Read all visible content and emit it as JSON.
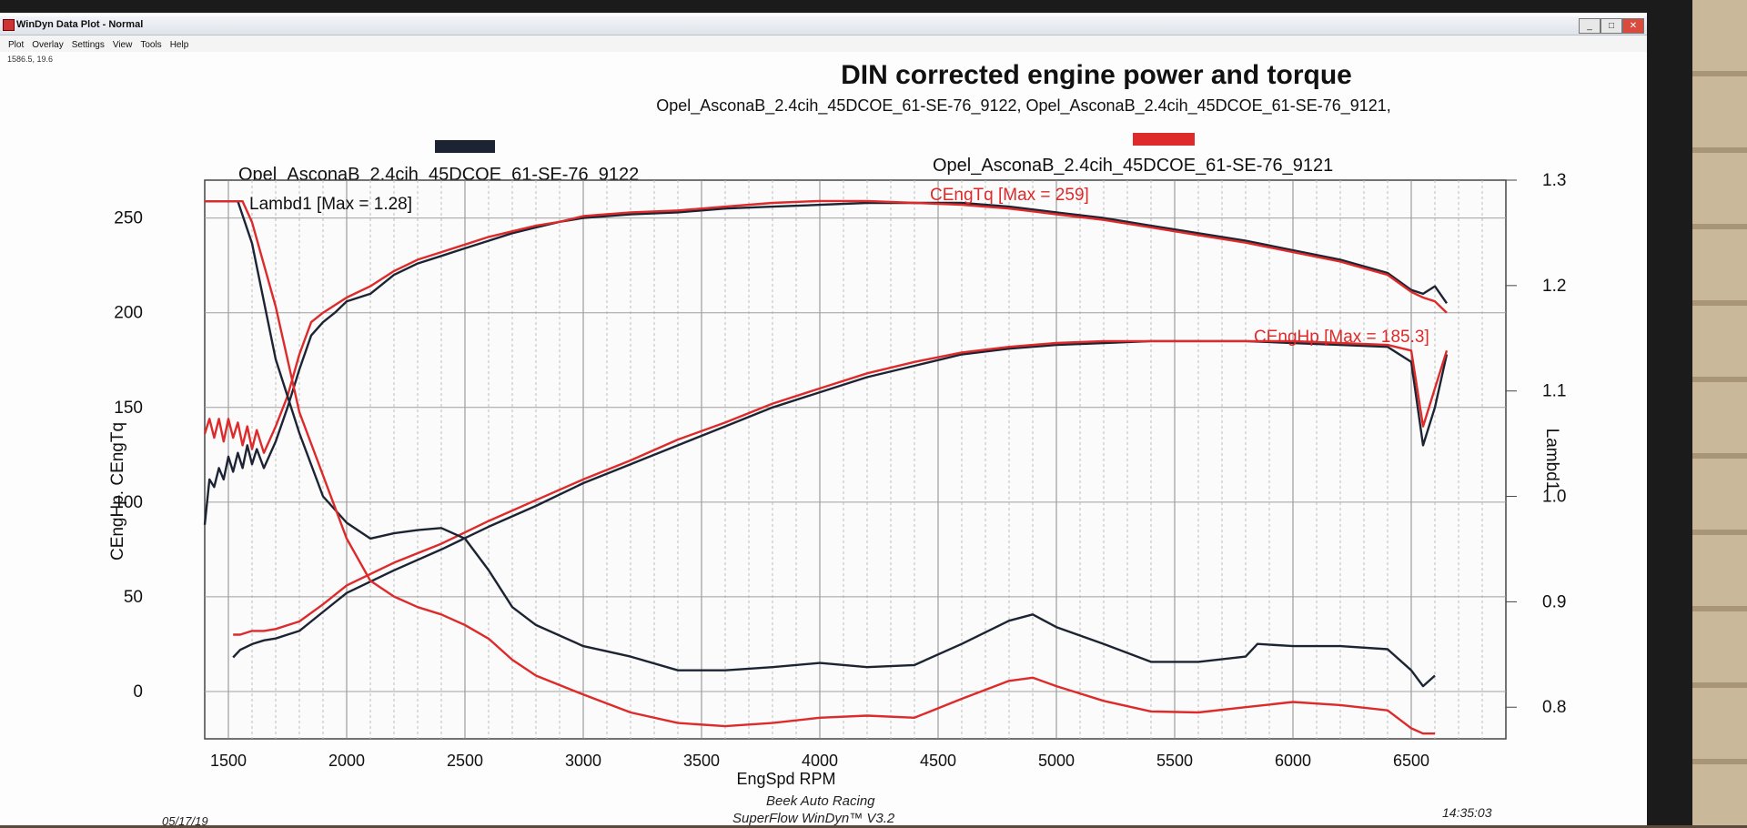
{
  "window": {
    "title": "WinDyn Data Plot - Normal",
    "menu": [
      "Plot",
      "Overlay",
      "Settings",
      "View",
      "Tools",
      "Help"
    ],
    "coord_readout": "1586.5, 19.6",
    "buttons": [
      "_",
      "□",
      "✕"
    ]
  },
  "footer": {
    "date": "05/17/19",
    "time": "14:35:03",
    "line1": "Beek Auto Racing",
    "line2": "SuperFlow WinDyn™ V3.2"
  },
  "colors": {
    "run_9122": "#1c2433",
    "run_9121": "#dd2a2a"
  },
  "chart_data": {
    "type": "line",
    "title": "DIN corrected engine power and torque",
    "subtitle": "Opel_AsconaB_2.4cih_45DCOE_61-SE-76_9122, Opel_AsconaB_2.4cih_45DCOE_61-SE-76_9121,",
    "xlabel": "EngSpd RPM",
    "ylabel_left": "CEngHp. CEngTq",
    "ylabel_right": "Lambd1",
    "x_ticks": [
      1500,
      2000,
      2500,
      3000,
      3500,
      4000,
      4500,
      5000,
      5500,
      6000,
      6500
    ],
    "y_left_ticks": [
      0,
      50,
      100,
      150,
      200,
      250
    ],
    "y_right_ticks": [
      "0.8",
      "0.9",
      "1.0",
      "1.1",
      "1.2",
      "1.3"
    ],
    "xlim": [
      1400,
      6900
    ],
    "ylim_left": [
      -25,
      270
    ],
    "ylim_right": [
      0.77,
      1.3
    ],
    "grid": true,
    "legend": [
      {
        "name": "Opel_AsconaB_2.4cih_45DCOE_61-SE-76_9122",
        "color": "#1c2433"
      },
      {
        "name": "Opel_AsconaB_2.4cih_45DCOE_61-SE-76_9121",
        "color": "#dd2a2a"
      }
    ],
    "annotations": {
      "lambda_max": "Lambd1 [Max = 1.28]",
      "torque_max": "CEngTq [Max = 259]",
      "hp_max": "CEngHp [Max = 185.3]"
    },
    "series": [
      {
        "name": "CEngTq",
        "run": "9122",
        "axis": "left",
        "x": [
          1400,
          1420,
          1440,
          1460,
          1480,
          1500,
          1520,
          1540,
          1560,
          1580,
          1600,
          1620,
          1650,
          1700,
          1750,
          1800,
          1850,
          1900,
          1950,
          2000,
          2100,
          2200,
          2300,
          2400,
          2500,
          2600,
          2700,
          2800,
          2900,
          3000,
          3200,
          3400,
          3600,
          3800,
          4000,
          4200,
          4400,
          4600,
          4800,
          5000,
          5200,
          5400,
          5600,
          5800,
          6000,
          6200,
          6400,
          6500,
          6550,
          6600,
          6650
        ],
        "y": [
          88,
          112,
          108,
          118,
          112,
          124,
          116,
          126,
          118,
          130,
          120,
          128,
          118,
          132,
          150,
          170,
          188,
          195,
          200,
          206,
          210,
          220,
          226,
          230,
          234,
          238,
          242,
          245,
          248,
          250,
          252,
          253,
          255,
          256,
          257,
          258,
          258,
          258,
          256,
          253,
          250,
          246,
          242,
          238,
          233,
          228,
          221,
          212,
          210,
          214,
          205
        ]
      },
      {
        "name": "CEngTq",
        "run": "9121",
        "axis": "left",
        "x": [
          1400,
          1420,
          1440,
          1460,
          1480,
          1500,
          1520,
          1540,
          1560,
          1580,
          1600,
          1620,
          1650,
          1700,
          1750,
          1800,
          1850,
          1900,
          1950,
          2000,
          2100,
          2200,
          2300,
          2400,
          2500,
          2600,
          2700,
          2800,
          2900,
          3000,
          3200,
          3400,
          3600,
          3800,
          4000,
          4200,
          4400,
          4600,
          4800,
          5000,
          5200,
          5400,
          5600,
          5800,
          6000,
          6200,
          6400,
          6500,
          6550,
          6600,
          6650
        ],
        "y": [
          136,
          144,
          134,
          144,
          132,
          144,
          134,
          142,
          130,
          140,
          128,
          138,
          126,
          140,
          156,
          178,
          195,
          200,
          204,
          208,
          214,
          222,
          228,
          232,
          236,
          240,
          243,
          246,
          248,
          251,
          253,
          254,
          256,
          258,
          259,
          259,
          258,
          257,
          255,
          252,
          249,
          245,
          241,
          237,
          232,
          227,
          220,
          211,
          208,
          206,
          200
        ]
      },
      {
        "name": "CEngHp",
        "run": "9122",
        "axis": "left",
        "x": [
          1520,
          1550,
          1600,
          1650,
          1700,
          1750,
          1800,
          1900,
          2000,
          2200,
          2400,
          2600,
          2800,
          3000,
          3200,
          3400,
          3600,
          3800,
          4000,
          4200,
          4400,
          4600,
          4800,
          5000,
          5200,
          5400,
          5600,
          5800,
          6000,
          6200,
          6400,
          6500,
          6550,
          6600,
          6650
        ],
        "y": [
          18,
          22,
          25,
          27,
          28,
          30,
          32,
          42,
          52,
          64,
          75,
          87,
          98,
          110,
          120,
          130,
          140,
          150,
          158,
          166,
          172,
          178,
          181,
          183,
          184,
          185,
          185,
          185,
          184,
          183,
          182,
          174,
          130,
          150,
          178
        ]
      },
      {
        "name": "CEngHp",
        "run": "9121",
        "axis": "left",
        "x": [
          1520,
          1550,
          1600,
          1650,
          1700,
          1750,
          1800,
          1900,
          2000,
          2200,
          2400,
          2600,
          2800,
          3000,
          3200,
          3400,
          3600,
          3800,
          4000,
          4200,
          4400,
          4600,
          4800,
          5000,
          5200,
          5400,
          5600,
          5800,
          6000,
          6200,
          6400,
          6500,
          6550,
          6600,
          6650
        ],
        "y": [
          30,
          30,
          32,
          32,
          33,
          35,
          37,
          46,
          56,
          68,
          78,
          90,
          101,
          112,
          122,
          133,
          142,
          152,
          160,
          168,
          174,
          179,
          182,
          184,
          185,
          185,
          185,
          185,
          185,
          184,
          183,
          180,
          140,
          160,
          180
        ]
      },
      {
        "name": "Lambd1",
        "run": "9122",
        "axis": "right",
        "x": [
          1400,
          1500,
          1540,
          1600,
          1700,
          1800,
          1900,
          2000,
          2100,
          2200,
          2300,
          2400,
          2500,
          2600,
          2700,
          2800,
          3000,
          3200,
          3400,
          3600,
          3800,
          4000,
          4200,
          4400,
          4600,
          4800,
          4900,
          5000,
          5200,
          5400,
          5600,
          5800,
          5850,
          6000,
          6200,
          6400,
          6500,
          6550,
          6600
        ],
        "y": [
          1.28,
          1.28,
          1.28,
          1.24,
          1.13,
          1.06,
          1.0,
          0.975,
          0.96,
          0.965,
          0.968,
          0.97,
          0.96,
          0.93,
          0.895,
          0.878,
          0.858,
          0.848,
          0.835,
          0.835,
          0.838,
          0.842,
          0.838,
          0.84,
          0.86,
          0.882,
          0.888,
          0.876,
          0.86,
          0.843,
          0.843,
          0.848,
          0.86,
          0.858,
          0.858,
          0.855,
          0.835,
          0.82,
          0.83
        ]
      },
      {
        "name": "Lambd1",
        "run": "9121",
        "axis": "right",
        "x": [
          1400,
          1500,
          1560,
          1600,
          1700,
          1800,
          1900,
          2000,
          2100,
          2200,
          2300,
          2400,
          2500,
          2600,
          2700,
          2800,
          3000,
          3200,
          3400,
          3600,
          3800,
          4000,
          4200,
          4400,
          4600,
          4800,
          4900,
          5000,
          5200,
          5400,
          5600,
          5800,
          6000,
          6200,
          6400,
          6500,
          6550,
          6600
        ],
        "y": [
          1.28,
          1.28,
          1.28,
          1.26,
          1.18,
          1.08,
          1.02,
          0.96,
          0.92,
          0.905,
          0.895,
          0.888,
          0.878,
          0.865,
          0.845,
          0.83,
          0.812,
          0.795,
          0.785,
          0.782,
          0.785,
          0.79,
          0.792,
          0.79,
          0.808,
          0.825,
          0.828,
          0.82,
          0.806,
          0.796,
          0.795,
          0.8,
          0.805,
          0.802,
          0.797,
          0.78,
          0.775,
          0.775
        ]
      }
    ]
  }
}
